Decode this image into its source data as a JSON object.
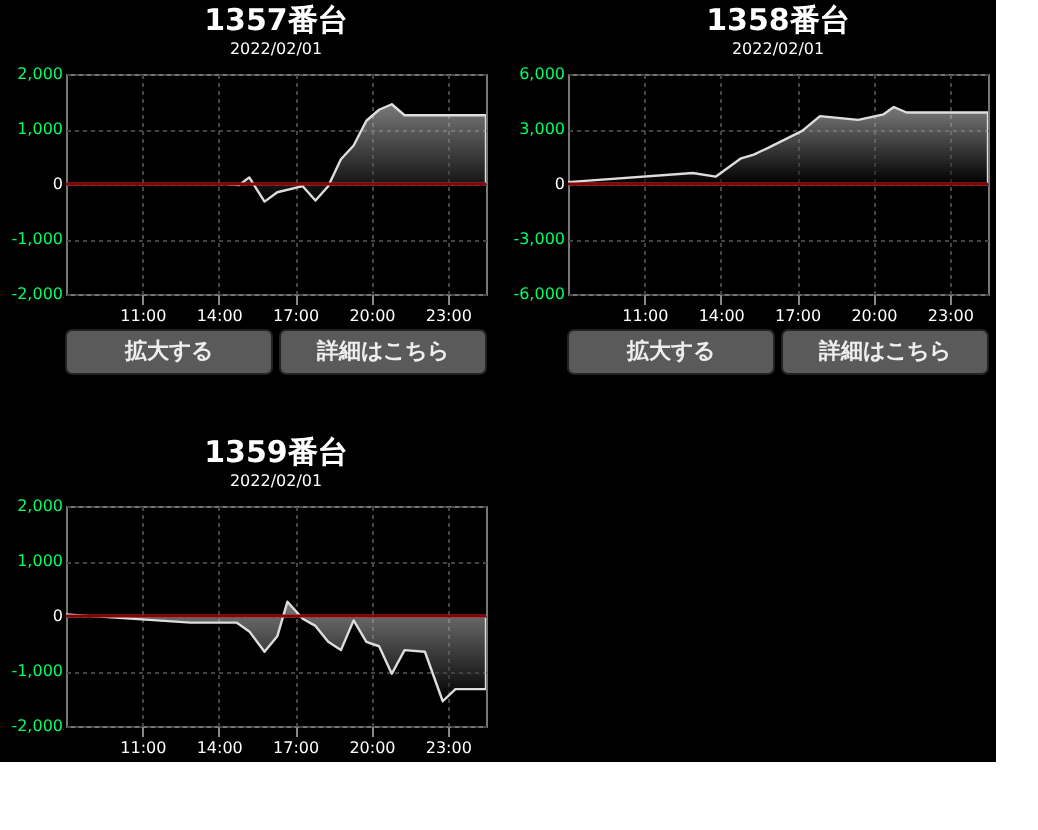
{
  "chart_data": [
    {
      "type": "area",
      "title": "1357番台",
      "subtitle": "2022/02/01",
      "x": [
        8.0,
        14.3,
        14.8,
        15.2,
        15.8,
        16.3,
        17.3,
        17.8,
        18.3,
        18.8,
        19.3,
        19.8,
        20.3,
        20.8,
        21.3,
        22.2,
        24.5
      ],
      "series": [
        {
          "color": "#dddddd",
          "values": [
            0,
            0,
            -20,
            120,
            -320,
            -150,
            -40,
            -300,
            -40,
            450,
            700,
            1150,
            1350,
            1450,
            1250,
            1250,
            1250
          ]
        }
      ],
      "xlim": [
        8,
        24.5
      ],
      "xticks": [
        {
          "value": 11,
          "label": "11:00"
        },
        {
          "value": 14,
          "label": "14:00"
        },
        {
          "value": 17,
          "label": "17:00"
        },
        {
          "value": 20,
          "label": "20:00"
        },
        {
          "value": 23,
          "label": "23:00"
        }
      ],
      "ylim": [
        -2000,
        2000
      ],
      "yticks": [
        {
          "value": -2000,
          "label": "-2,000"
        },
        {
          "value": -1000,
          "label": "-1,000"
        },
        0,
        {
          "value": 1000,
          "label": "1,000"
        },
        {
          "value": 2000,
          "label": "2,000"
        }
      ],
      "ref_lines": [
        {
          "axis": "y",
          "value": 0,
          "color": "#8b0000"
        }
      ],
      "grid": true,
      "annotations": [
        "拡大する",
        "詳細はこちら"
      ]
    },
    {
      "type": "area",
      "title": "1358番台",
      "subtitle": "2022/02/01",
      "x": [
        8.0,
        12.9,
        13.8,
        14.8,
        15.3,
        15.9,
        17.2,
        17.9,
        19.4,
        20.4,
        20.8,
        21.3,
        22.8,
        24.5
      ],
      "series": [
        {
          "color": "#dddddd",
          "values": [
            100,
            600,
            400,
            1400,
            1600,
            2000,
            2900,
            3700,
            3500,
            3800,
            4200,
            3900,
            3900,
            3900
          ]
        }
      ],
      "xlim": [
        8,
        24.5
      ],
      "xticks": [
        {
          "value": 11,
          "label": "11:00"
        },
        {
          "value": 14,
          "label": "14:00"
        },
        {
          "value": 17,
          "label": "17:00"
        },
        {
          "value": 20,
          "label": "20:00"
        },
        {
          "value": 23,
          "label": "23:00"
        }
      ],
      "ylim": [
        -6000,
        6000
      ],
      "yticks": [
        {
          "value": -6000,
          "label": "-6,000"
        },
        {
          "value": -3000,
          "label": "-3,000"
        },
        0,
        {
          "value": 3000,
          "label": "3,000"
        },
        {
          "value": 6000,
          "label": "6,000"
        }
      ],
      "ref_lines": [
        {
          "axis": "y",
          "value": 0,
          "color": "#8b0000"
        }
      ],
      "grid": true,
      "annotations": [
        "拡大する",
        "詳細はこちら"
      ]
    },
    {
      "type": "area",
      "title": "1359番台",
      "subtitle": "2022/02/01",
      "x": [
        8.0,
        12.9,
        14.7,
        15.2,
        15.8,
        16.3,
        16.7,
        17.3,
        17.8,
        18.3,
        18.8,
        19.3,
        19.8,
        20.3,
        20.8,
        21.3,
        22.1,
        22.8,
        23.3,
        24.5
      ],
      "series": [
        {
          "color": "#dddddd",
          "values": [
            30,
            -120,
            -120,
            -280,
            -650,
            -370,
            260,
            -50,
            -180,
            -470,
            -620,
            -80,
            -470,
            -550,
            -1050,
            -620,
            -650,
            -1550,
            -1330,
            -1330
          ]
        }
      ],
      "xlim": [
        8,
        24.5
      ],
      "xticks": [
        {
          "value": 11,
          "label": "11:00"
        },
        {
          "value": 14,
          "label": "14:00"
        },
        {
          "value": 17,
          "label": "17:00"
        },
        {
          "value": 20,
          "label": "20:00"
        },
        {
          "value": 23,
          "label": "23:00"
        }
      ],
      "ylim": [
        -2000,
        2000
      ],
      "yticks": [
        {
          "value": -2000,
          "label": "-2,000"
        },
        {
          "value": -1000,
          "label": "-1,000"
        },
        0,
        {
          "value": 1000,
          "label": "1,000"
        },
        {
          "value": 2000,
          "label": "2,000"
        }
      ],
      "ref_lines": [
        {
          "axis": "y",
          "value": 0,
          "color": "#8b0000"
        }
      ],
      "grid": true
    }
  ]
}
